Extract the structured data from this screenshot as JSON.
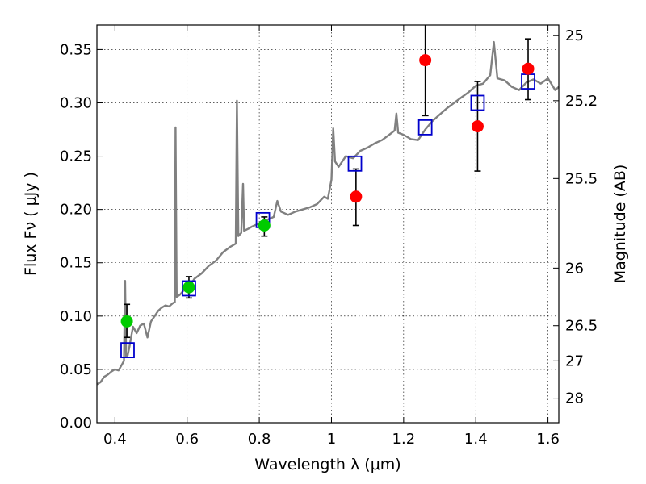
{
  "chart_data": {
    "type": "scatter",
    "xlabel": "Wavelength  λ (μm)",
    "ylabel": "Flux  Fν  ( μJy )",
    "y2label": "Magnitude (AB)",
    "xlim": [
      0.35,
      1.63
    ],
    "ylim": [
      0.0,
      0.373
    ],
    "grid": true,
    "x_ticks": [
      0.4,
      0.6,
      0.8,
      1.0,
      1.2,
      1.4,
      1.6
    ],
    "x_tick_labels": [
      "0.4",
      "0.6",
      "0.8",
      "1",
      "1.2",
      "1.4",
      "1.6"
    ],
    "y_ticks": [
      0.0,
      0.05,
      0.1,
      0.15,
      0.2,
      0.25,
      0.3,
      0.35
    ],
    "y_tick_labels": [
      "0.00",
      "0.05",
      "0.10",
      "0.15",
      "0.20",
      "0.25",
      "0.30",
      "0.35"
    ],
    "y2_ticks": [
      {
        "label": "25",
        "flux": 0.363
      },
      {
        "label": "25.2",
        "flux": 0.302
      },
      {
        "label": "25.5",
        "flux": 0.229
      },
      {
        "label": "26",
        "flux": 0.145
      },
      {
        "label": "26.5",
        "flux": 0.091
      },
      {
        "label": "27",
        "flux": 0.058
      },
      {
        "label": "28",
        "flux": 0.023
      }
    ],
    "model_spectrum_color": "#808080",
    "model_spectrum": [
      [
        0.35,
        0.036
      ],
      [
        0.36,
        0.038
      ],
      [
        0.37,
        0.043
      ],
      [
        0.38,
        0.045
      ],
      [
        0.39,
        0.048
      ],
      [
        0.4,
        0.05
      ],
      [
        0.41,
        0.049
      ],
      [
        0.42,
        0.055
      ],
      [
        0.425,
        0.058
      ],
      [
        0.428,
        0.133
      ],
      [
        0.431,
        0.062
      ],
      [
        0.435,
        0.063
      ],
      [
        0.44,
        0.071
      ],
      [
        0.45,
        0.09
      ],
      [
        0.46,
        0.084
      ],
      [
        0.47,
        0.091
      ],
      [
        0.48,
        0.093
      ],
      [
        0.49,
        0.08
      ],
      [
        0.5,
        0.095
      ],
      [
        0.51,
        0.1
      ],
      [
        0.52,
        0.105
      ],
      [
        0.53,
        0.108
      ],
      [
        0.54,
        0.11
      ],
      [
        0.55,
        0.109
      ],
      [
        0.56,
        0.112
      ],
      [
        0.566,
        0.113
      ],
      [
        0.568,
        0.277
      ],
      [
        0.571,
        0.118
      ],
      [
        0.58,
        0.12
      ],
      [
        0.59,
        0.124
      ],
      [
        0.6,
        0.124
      ],
      [
        0.62,
        0.135
      ],
      [
        0.64,
        0.14
      ],
      [
        0.66,
        0.147
      ],
      [
        0.68,
        0.152
      ],
      [
        0.7,
        0.16
      ],
      [
        0.72,
        0.165
      ],
      [
        0.735,
        0.168
      ],
      [
        0.738,
        0.302
      ],
      [
        0.742,
        0.175
      ],
      [
        0.75,
        0.178
      ],
      [
        0.755,
        0.224
      ],
      [
        0.758,
        0.18
      ],
      [
        0.77,
        0.182
      ],
      [
        0.78,
        0.184
      ],
      [
        0.8,
        0.187
      ],
      [
        0.82,
        0.19
      ],
      [
        0.84,
        0.193
      ],
      [
        0.85,
        0.208
      ],
      [
        0.86,
        0.198
      ],
      [
        0.88,
        0.195
      ],
      [
        0.9,
        0.198
      ],
      [
        0.92,
        0.2
      ],
      [
        0.94,
        0.202
      ],
      [
        0.96,
        0.205
      ],
      [
        0.98,
        0.212
      ],
      [
        0.99,
        0.21
      ],
      [
        1.0,
        0.228
      ],
      [
        1.005,
        0.276
      ],
      [
        1.01,
        0.245
      ],
      [
        1.02,
        0.24
      ],
      [
        1.04,
        0.25
      ],
      [
        1.06,
        0.248
      ],
      [
        1.08,
        0.255
      ],
      [
        1.1,
        0.258
      ],
      [
        1.12,
        0.262
      ],
      [
        1.14,
        0.265
      ],
      [
        1.16,
        0.27
      ],
      [
        1.175,
        0.274
      ],
      [
        1.18,
        0.29
      ],
      [
        1.185,
        0.272
      ],
      [
        1.2,
        0.27
      ],
      [
        1.22,
        0.266
      ],
      [
        1.24,
        0.265
      ],
      [
        1.26,
        0.275
      ],
      [
        1.28,
        0.283
      ],
      [
        1.3,
        0.289
      ],
      [
        1.32,
        0.295
      ],
      [
        1.34,
        0.3
      ],
      [
        1.36,
        0.305
      ],
      [
        1.38,
        0.31
      ],
      [
        1.4,
        0.316
      ],
      [
        1.42,
        0.318
      ],
      [
        1.44,
        0.326
      ],
      [
        1.45,
        0.357
      ],
      [
        1.46,
        0.323
      ],
      [
        1.48,
        0.321
      ],
      [
        1.5,
        0.315
      ],
      [
        1.52,
        0.312
      ],
      [
        1.54,
        0.319
      ],
      [
        1.56,
        0.322
      ],
      [
        1.58,
        0.318
      ],
      [
        1.6,
        0.323
      ],
      [
        1.62,
        0.312
      ],
      [
        1.63,
        0.315
      ]
    ],
    "model_photometry_color": "#0000cc",
    "model_photometry": [
      [
        0.435,
        0.068
      ],
      [
        0.605,
        0.126
      ],
      [
        0.81,
        0.19
      ],
      [
        1.065,
        0.243
      ],
      [
        1.26,
        0.277
      ],
      [
        1.405,
        0.3
      ],
      [
        1.545,
        0.32
      ]
    ],
    "observed_points": [
      {
        "x": 0.433,
        "y": 0.095,
        "err_low": 0.015,
        "err_high": 0.016,
        "color": "#00cc00"
      },
      {
        "x": 0.605,
        "y": 0.127,
        "err_low": 0.01,
        "err_high": 0.01,
        "color": "#00cc00"
      },
      {
        "x": 0.814,
        "y": 0.185,
        "err_low": 0.01,
        "err_high": 0.008,
        "color": "#00cc00"
      },
      {
        "x": 1.068,
        "y": 0.212,
        "err_low": 0.027,
        "err_high": 0.026,
        "color": "#ff0000"
      },
      {
        "x": 1.26,
        "y": 0.34,
        "err_low": 0.052,
        "err_high": 0.04,
        "color": "#ff0000"
      },
      {
        "x": 1.405,
        "y": 0.278,
        "err_low": 0.042,
        "err_high": 0.042,
        "color": "#ff0000"
      },
      {
        "x": 1.545,
        "y": 0.332,
        "err_low": 0.029,
        "err_high": 0.028,
        "color": "#ff0000"
      }
    ]
  }
}
